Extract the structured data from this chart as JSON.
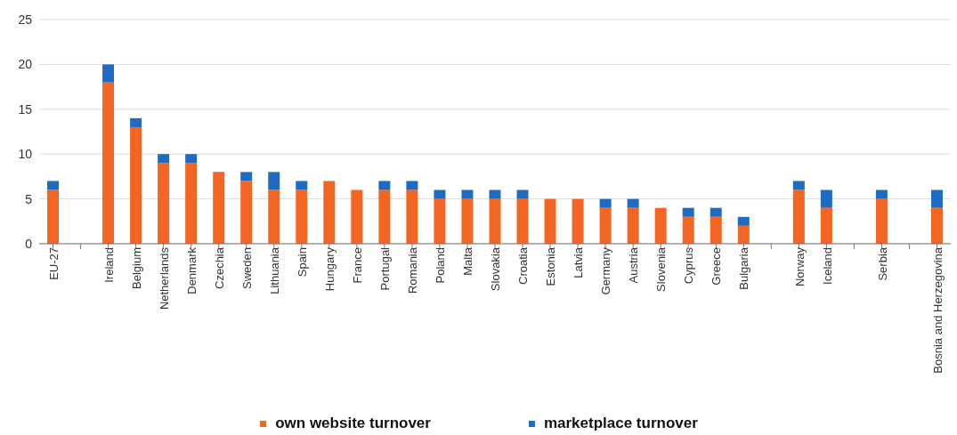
{
  "chart_data": {
    "type": "bar",
    "stacked": true,
    "categories": [
      "EU-27",
      null,
      "Ireland",
      "Belgium",
      "Netherlands",
      "Denmark",
      "Czechia",
      "Sweden",
      "Lithuania",
      "Spain",
      "Hungary",
      "France",
      "Portugal",
      "Romania",
      "Poland",
      "Malta",
      "Slovakia",
      "Croatia",
      "Estonia",
      "Latvia",
      "Germany",
      "Austria",
      "Slovenia",
      "Cyprus",
      "Greece",
      "Bulgaria",
      null,
      "Norway",
      "Iceland",
      null,
      "Serbia",
      null,
      "Bosnia and Herzegovina"
    ],
    "series": [
      {
        "name": "own website turnover",
        "color": "#f26522",
        "values": [
          6,
          null,
          18,
          13,
          9,
          9,
          8,
          7,
          6,
          6,
          7,
          6,
          6,
          6,
          5,
          5,
          5,
          5,
          5,
          5,
          4,
          4,
          4,
          3,
          3,
          2,
          null,
          6,
          4,
          null,
          5,
          null,
          4
        ]
      },
      {
        "name": "marketplace turnover",
        "color": "#1f6bc1",
        "values": [
          1,
          null,
          2,
          1,
          1,
          1,
          0,
          1,
          2,
          1,
          0,
          0,
          1,
          1,
          1,
          1,
          1,
          1,
          0,
          0,
          1,
          1,
          0,
          1,
          1,
          1,
          null,
          1,
          2,
          null,
          1,
          null,
          2
        ]
      }
    ],
    "ylim": [
      0,
      25
    ],
    "yticks": [
      0,
      5,
      10,
      15,
      20,
      25
    ],
    "grid": "y",
    "legend": "bottom"
  }
}
